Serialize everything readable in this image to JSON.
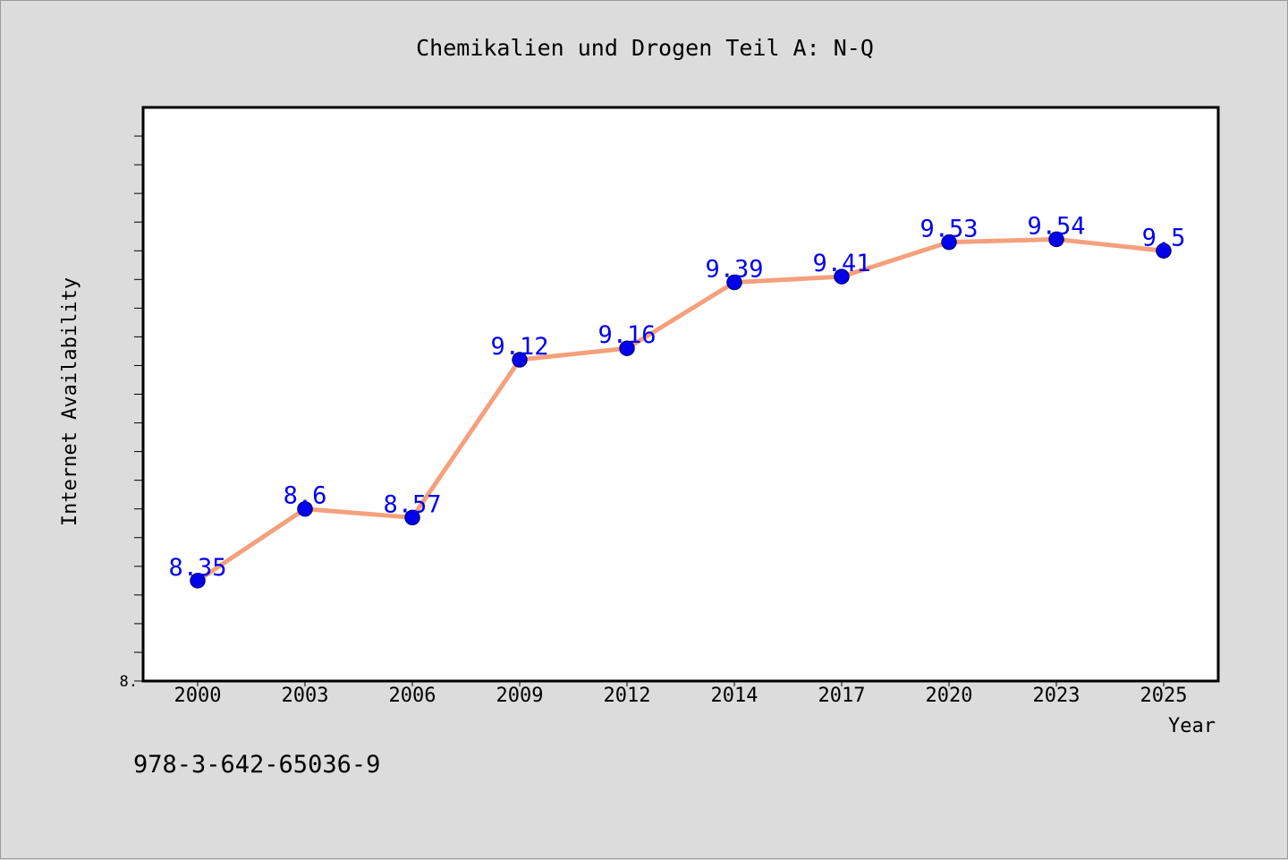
{
  "chart_data": {
    "type": "line",
    "title": "Chemikalien und Drogen Teil A: N-Q",
    "xlabel": "Year",
    "ylabel": "Internet Availability",
    "categories": [
      "2000",
      "2003",
      "2006",
      "2009",
      "2012",
      "2014",
      "2017",
      "2020",
      "2023",
      "2025"
    ],
    "series": [
      {
        "values": [
          8.35,
          8.6,
          8.57,
          9.12,
          9.16,
          9.39,
          9.41,
          9.53,
          9.54,
          9.5
        ],
        "labels": [
          "8.35",
          "8.6",
          "8.57",
          "9.12",
          "9.16",
          "9.39",
          "9.41",
          "9.53",
          "9.54",
          "9.5"
        ]
      }
    ],
    "ylim": [
      8.0,
      10.0
    ],
    "y_tick_labels": [
      {
        "value": 8.0,
        "label": "8."
      }
    ],
    "grid": false,
    "colors": {
      "line": "#f4a07c",
      "marker_fill": "#0000ee",
      "marker_edge": "#00008b",
      "data_label": "#0000ee",
      "background": "#dcdcdc",
      "plot_background": "#ffffff"
    }
  },
  "footer": {
    "isbn": "978-3-642-65036-9"
  }
}
